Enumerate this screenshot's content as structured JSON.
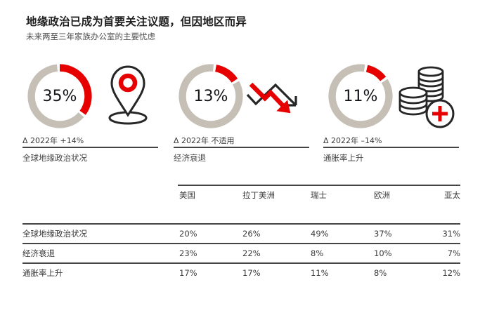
{
  "page": {
    "title": "地缘政治已成为首要关注议题，但因地区而异",
    "subtitle": "未来两至三年家族办公室的主要忧虑"
  },
  "colors": {
    "accent_red": "#e60000",
    "donut_gray": "#c5bfb5",
    "icon_black": "#262626",
    "text_primary": "#1f1f1f",
    "rule_dark": "#454545"
  },
  "gauges": [
    {
      "value_pct": 35,
      "value_label": "35%",
      "arc_start_deg": 0,
      "delta_label": "Δ 2022年 +14%",
      "caption": "全球地缘政治状况",
      "icon": "location-pin-icon"
    },
    {
      "value_pct": 13,
      "value_label": "13%",
      "arc_start_deg": 10,
      "delta_label": "Δ 2022年 不适用",
      "caption": "经济衰退",
      "icon": "downtrend-arrows-icon"
    },
    {
      "value_pct": 11,
      "value_label": "11%",
      "arc_start_deg": 13,
      "delta_label": "Δ 2022年 –14%",
      "caption": "通胀率上升",
      "icon": "coins-plus-icon"
    }
  ],
  "table": {
    "region_columns": [
      "美国",
      "拉丁美洲",
      "瑞士",
      "欧洲",
      "亚太"
    ],
    "rows": [
      {
        "label": "全球地缘政治状况",
        "values": [
          "20%",
          "26%",
          "49%",
          "37%",
          "31%"
        ]
      },
      {
        "label": "经济衰退",
        "values": [
          "23%",
          "22%",
          "8%",
          "10%",
          "7%"
        ]
      },
      {
        "label": "通胀率上升",
        "values": [
          "17%",
          "17%",
          "11%",
          "8%",
          "12%"
        ]
      }
    ]
  },
  "chart_data": [
    {
      "type": "pie",
      "subtype": "donut_gauge_row",
      "title": "地缘政治已成为首要关注议题，但因地区而异",
      "subtitle": "未来两至三年家族办公室的主要忧虑",
      "series": [
        {
          "name": "全球地缘政治状况",
          "value_pct": 35,
          "delta_vs_2022": "+14%"
        },
        {
          "name": "经济衰退",
          "value_pct": 13,
          "delta_vs_2022": "不适用"
        },
        {
          "name": "通胀率上升",
          "value_pct": 11,
          "delta_vs_2022": "–14%"
        }
      ],
      "colors": {
        "segment": "#e60000",
        "remainder": "#c5bfb5"
      }
    },
    {
      "type": "table",
      "columns": [
        "",
        "美国",
        "拉丁美洲",
        "瑞士",
        "欧洲",
        "亚太"
      ],
      "rows": [
        [
          "全球地缘政治状况",
          "20%",
          "26%",
          "49%",
          "37%",
          "31%"
        ],
        [
          "经济衰退",
          "23%",
          "22%",
          "8%",
          "10%",
          "7%"
        ],
        [
          "通胀率上升",
          "17%",
          "17%",
          "11%",
          "8%",
          "12%"
        ]
      ]
    }
  ]
}
